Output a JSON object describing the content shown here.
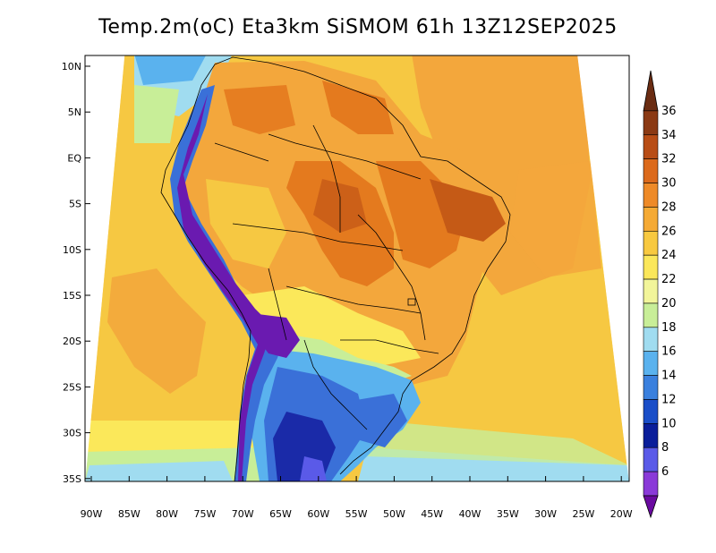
{
  "title": "Temp.2m(oC) Eta3km SiSMOM 61h 13Z12SEP2025",
  "lat_labels": [
    "10N",
    "5N",
    "EQ",
    "5S",
    "10S",
    "15S",
    "20S",
    "25S",
    "30S",
    "35S"
  ],
  "lon_labels": [
    "90W",
    "85W",
    "80W",
    "75W",
    "70W",
    "65W",
    "60W",
    "55W",
    "50W",
    "45W",
    "40W",
    "35W",
    "30W",
    "25W",
    "20W"
  ],
  "colorbar": {
    "labels": [
      "36",
      "34",
      "32",
      "30",
      "28",
      "26",
      "24",
      "22",
      "20",
      "18",
      "16",
      "14",
      "12",
      "10",
      "8",
      "6"
    ],
    "colors": [
      "#6a2c12",
      "#8b3a14",
      "#b84d16",
      "#dc6a1c",
      "#ee8a28",
      "#f5aa35",
      "#f8c940",
      "#fbe75a",
      "#f2f59a",
      "#c8ee98",
      "#a0dcf0",
      "#5ab2ee",
      "#3a80de",
      "#1a4ec8",
      "#0a1e9a",
      "#5a5ae8",
      "#8a3ad8",
      "#6a0aa0"
    ]
  },
  "colors": {
    "warm": "#f3a73c",
    "hot": "#e47a1e",
    "very_hot": "#c55a16",
    "ocean": "#f6c842",
    "mild": "#fbe85a",
    "cool": "#a0dcf0",
    "cold": "#3a70d8",
    "very_cold": "#1a2aa8",
    "andes": "#6a1ab0"
  }
}
